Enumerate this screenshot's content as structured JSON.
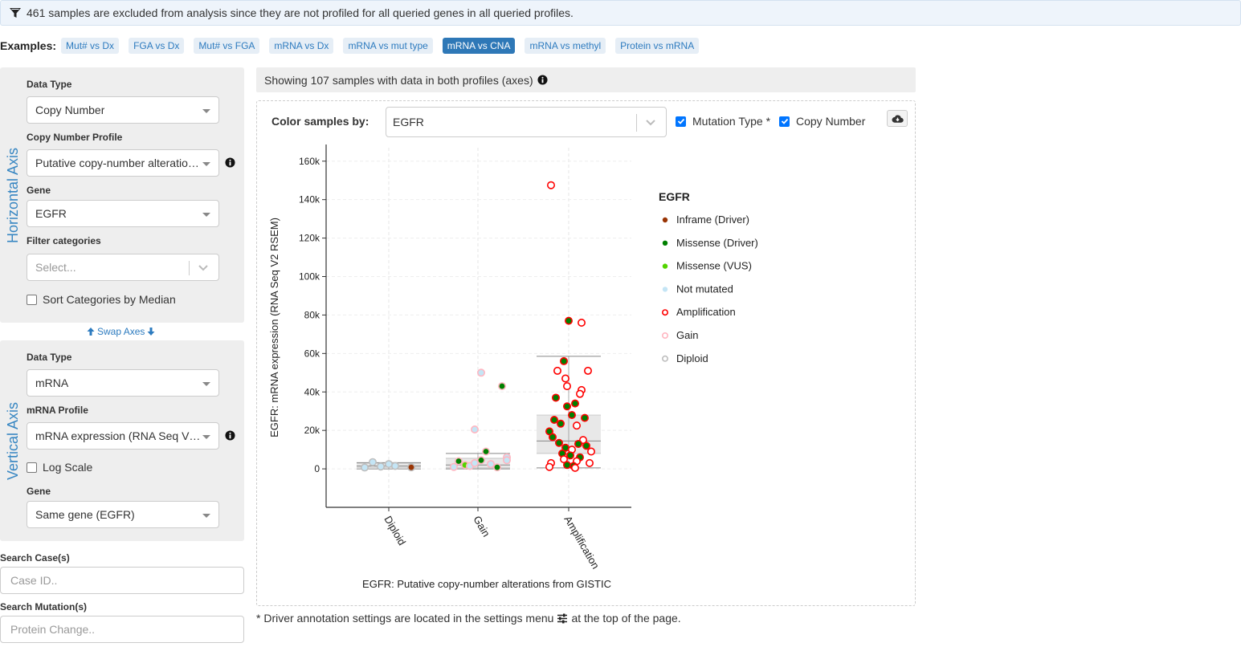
{
  "banner": {
    "text": "461 samples are excluded from analysis since they are not profiled for all queried genes in all queried profiles."
  },
  "examples": {
    "label": "Examples:",
    "items": [
      {
        "label": "Mut# vs Dx",
        "active": false
      },
      {
        "label": "FGA vs Dx",
        "active": false
      },
      {
        "label": "Mut# vs FGA",
        "active": false
      },
      {
        "label": "mRNA vs Dx",
        "active": false
      },
      {
        "label": "mRNA vs mut type",
        "active": false
      },
      {
        "label": "mRNA vs CNA",
        "active": true
      },
      {
        "label": "mRNA vs methyl",
        "active": false
      },
      {
        "label": "Protein vs mRNA",
        "active": false
      }
    ]
  },
  "horizontal": {
    "title": "Horizontal Axis",
    "data_type_label": "Data Type",
    "data_type_value": "Copy Number",
    "profile_label": "Copy Number Profile",
    "profile_value": "Putative copy-number alterations from GISTIC",
    "gene_label": "Gene",
    "gene_value": "EGFR",
    "filter_label": "Filter categories",
    "filter_placeholder": "Select...",
    "sort_label": "Sort Categories by Median"
  },
  "swap_label": "Swap Axes",
  "vertical": {
    "title": "Vertical Axis",
    "data_type_label": "Data Type",
    "data_type_value": "mRNA",
    "profile_label": "mRNA Profile",
    "profile_value": "mRNA expression (RNA Seq V2 RSEM)",
    "log_label": "Log Scale",
    "gene_label": "Gene",
    "gene_value": "Same gene (EGFR)"
  },
  "search": {
    "case_label": "Search Case(s)",
    "case_placeholder": "Case ID..",
    "mutation_label": "Search Mutation(s)",
    "mutation_placeholder": "Protein Change.."
  },
  "showing": "Showing 107 samples with data in both profiles (axes)",
  "color_by": {
    "label": "Color samples by:",
    "value": "EGFR",
    "mutation_type_label": "Mutation Type *",
    "copy_number_label": "Copy Number"
  },
  "footnote": {
    "before": "* Driver annotation settings are located in the settings menu",
    "after": "at the top of the page."
  },
  "colors": {
    "inframe": "#993404",
    "missense_driver": "#008000",
    "missense_vus": "#53d400",
    "not_mutated": "#c4e5f5",
    "amplification": "#ff0000",
    "gain": "#ffb6c1",
    "diploid": "#bebebe"
  },
  "chart_data": {
    "type": "scatter",
    "subtype": "box-and-jitter",
    "xlabel": "EGFR: Putative copy-number alterations from GISTIC",
    "ylabel": "EGFR: mRNA expression (RNA Seq V2 RSEM)",
    "categories": [
      "Diploid",
      "Gain",
      "Amplification"
    ],
    "yticks": [
      0,
      20000,
      40000,
      60000,
      80000,
      100000,
      120000,
      140000,
      160000
    ],
    "ytick_labels": [
      "0",
      "20k",
      "40k",
      "60k",
      "80k",
      "100k",
      "120k",
      "140k",
      "160k"
    ],
    "ylim": [
      -20000,
      167000
    ],
    "legend": {
      "title": "EGFR",
      "position": "right",
      "entries": [
        {
          "label": "Inframe (Driver)",
          "kind": "dot",
          "color": "#993404"
        },
        {
          "label": "Missense (Driver)",
          "kind": "dot",
          "color": "#008000"
        },
        {
          "label": "Missense (VUS)",
          "kind": "dot",
          "color": "#53d400"
        },
        {
          "label": "Not mutated",
          "kind": "dot",
          "color": "#c4e5f5"
        },
        {
          "label": "Amplification",
          "kind": "ring",
          "color": "#ff0000"
        },
        {
          "label": "Gain",
          "kind": "ring",
          "color": "#ffb6c1"
        },
        {
          "label": "Diploid",
          "kind": "ring",
          "color": "#bebebe"
        }
      ]
    },
    "boxes": [
      {
        "category": "Diploid",
        "q1": 800,
        "median": 1500,
        "q3": 3000,
        "whisker_low": 0,
        "whisker_high": 3200
      },
      {
        "category": "Gain",
        "q1": 500,
        "median": 2000,
        "q3": 5500,
        "whisker_low": 0,
        "whisker_high": 8000
      },
      {
        "category": "Amplification",
        "q1": 8000,
        "median": 14500,
        "q3": 28000,
        "whisker_low": 500,
        "whisker_high": 58500
      }
    ],
    "points": [
      {
        "c": 0,
        "j": -0.15,
        "y": 700,
        "fill": "#c4e5f5",
        "stroke": "#bebebe"
      },
      {
        "c": 0,
        "j": -0.1,
        "y": 3500,
        "fill": "#c4e5f5",
        "stroke": "#bebebe"
      },
      {
        "c": 0,
        "j": -0.05,
        "y": 1200,
        "fill": "#c4e5f5",
        "stroke": "#bebebe"
      },
      {
        "c": 0,
        "j": 0.0,
        "y": 2500,
        "fill": "#c4e5f5",
        "stroke": "#bebebe"
      },
      {
        "c": 0,
        "j": 0.04,
        "y": 1500,
        "fill": "#c4e5f5",
        "stroke": "#bebebe"
      },
      {
        "c": 0,
        "j": 0.14,
        "y": 800,
        "fill": "#993404",
        "stroke": "#bebebe"
      },
      {
        "c": 1,
        "j": 0.02,
        "y": 50000,
        "fill": "#c4e5f5",
        "stroke": "#ffb6c1"
      },
      {
        "c": 1,
        "j": 0.15,
        "y": 43000,
        "fill": "#008000",
        "stroke": "#ffb6c1"
      },
      {
        "c": 1,
        "j": -0.02,
        "y": 20500,
        "fill": "#c4e5f5",
        "stroke": "#ffb6c1"
      },
      {
        "c": 1,
        "j": 0.05,
        "y": 9000,
        "fill": "#008000",
        "stroke": "#ffb6c1"
      },
      {
        "c": 1,
        "j": -0.12,
        "y": 4000,
        "fill": "#008000",
        "stroke": "#ffb6c1"
      },
      {
        "c": 1,
        "j": -0.08,
        "y": 2000,
        "fill": "#53d400",
        "stroke": "#ffb6c1"
      },
      {
        "c": 1,
        "j": -0.15,
        "y": 1000,
        "fill": "#c4e5f5",
        "stroke": "#ffb6c1"
      },
      {
        "c": 1,
        "j": 0.02,
        "y": 4500,
        "fill": "#008000",
        "stroke": "#ffb6c1"
      },
      {
        "c": 1,
        "j": 0.12,
        "y": 800,
        "fill": "#008000",
        "stroke": "#ffb6c1"
      },
      {
        "c": 1,
        "j": 0.18,
        "y": 6000,
        "fill": "#c4e5f5",
        "stroke": "#ffb6c1"
      },
      {
        "c": 1,
        "j": -0.05,
        "y": 1500,
        "fill": "#c4e5f5",
        "stroke": "#ffb6c1"
      },
      {
        "c": 1,
        "j": 0.08,
        "y": 2500,
        "fill": "#c4e5f5",
        "stroke": "#ffb6c1"
      },
      {
        "c": 1,
        "j": -0.02,
        "y": 3000,
        "fill": "#c4e5f5",
        "stroke": "#ffb6c1"
      },
      {
        "c": 1,
        "j": 0.18,
        "y": 4500,
        "fill": "#c4e5f5",
        "stroke": "#ffb6c1"
      },
      {
        "c": 2,
        "j": -0.11,
        "y": 147500,
        "fill": "#ffffff",
        "stroke": "#ff0000"
      },
      {
        "c": 2,
        "j": 0.0,
        "y": 77000,
        "fill": "#008000",
        "stroke": "#ff0000"
      },
      {
        "c": 2,
        "j": 0.08,
        "y": 76000,
        "fill": "#ffffff",
        "stroke": "#ff0000"
      },
      {
        "c": 2,
        "j": -0.03,
        "y": 56000,
        "fill": "#008000",
        "stroke": "#ff0000"
      },
      {
        "c": 2,
        "j": 0.12,
        "y": 51000,
        "fill": "#ffffff",
        "stroke": "#ff0000"
      },
      {
        "c": 2,
        "j": -0.07,
        "y": 51000,
        "fill": "#ffffff",
        "stroke": "#ff0000"
      },
      {
        "c": 2,
        "j": -0.02,
        "y": 47000,
        "fill": "#ffffff",
        "stroke": "#ff0000"
      },
      {
        "c": 2,
        "j": -0.01,
        "y": 43000,
        "fill": "#ffffff",
        "stroke": "#ff0000"
      },
      {
        "c": 2,
        "j": 0.08,
        "y": 41000,
        "fill": "#ffffff",
        "stroke": "#ff0000"
      },
      {
        "c": 2,
        "j": 0.07,
        "y": 39000,
        "fill": "#ffffff",
        "stroke": "#ff0000"
      },
      {
        "c": 2,
        "j": -0.08,
        "y": 37000,
        "fill": "#008000",
        "stroke": "#ff0000"
      },
      {
        "c": 2,
        "j": 0.04,
        "y": 34000,
        "fill": "#008000",
        "stroke": "#ff0000"
      },
      {
        "c": 2,
        "j": -0.01,
        "y": 32500,
        "fill": "#008000",
        "stroke": "#ff0000"
      },
      {
        "c": 2,
        "j": 0.02,
        "y": 28000,
        "fill": "#008000",
        "stroke": "#ff0000"
      },
      {
        "c": 2,
        "j": -0.09,
        "y": 25500,
        "fill": "#008000",
        "stroke": "#ff0000"
      },
      {
        "c": 2,
        "j": 0.1,
        "y": 26500,
        "fill": "#008000",
        "stroke": "#ff0000"
      },
      {
        "c": 2,
        "j": -0.05,
        "y": 23500,
        "fill": "#008000",
        "stroke": "#ff0000"
      },
      {
        "c": 2,
        "j": 0.05,
        "y": 22500,
        "fill": "#ffffff",
        "stroke": "#ff0000"
      },
      {
        "c": 2,
        "j": -0.12,
        "y": 19500,
        "fill": "#008000",
        "stroke": "#ff0000"
      },
      {
        "c": 2,
        "j": -0.1,
        "y": 16500,
        "fill": "#008000",
        "stroke": "#ff0000"
      },
      {
        "c": 2,
        "j": 0.09,
        "y": 15000,
        "fill": "#ffffff",
        "stroke": "#ff0000"
      },
      {
        "c": 2,
        "j": -0.06,
        "y": 13500,
        "fill": "#008000",
        "stroke": "#ff0000"
      },
      {
        "c": 2,
        "j": 0.06,
        "y": 13000,
        "fill": "#008000",
        "stroke": "#ff0000"
      },
      {
        "c": 2,
        "j": 0.11,
        "y": 12000,
        "fill": "#008000",
        "stroke": "#ff0000"
      },
      {
        "c": 2,
        "j": -0.02,
        "y": 11000,
        "fill": "#008000",
        "stroke": "#ff0000"
      },
      {
        "c": 2,
        "j": 0.02,
        "y": 10000,
        "fill": "#ffffff",
        "stroke": "#ff0000"
      },
      {
        "c": 2,
        "j": 0.14,
        "y": 9000,
        "fill": "#ffffff",
        "stroke": "#ff0000"
      },
      {
        "c": 2,
        "j": -0.04,
        "y": 8000,
        "fill": "#008000",
        "stroke": "#ff0000"
      },
      {
        "c": 2,
        "j": 0.01,
        "y": 7000,
        "fill": "#008000",
        "stroke": "#ff0000"
      },
      {
        "c": 2,
        "j": 0.07,
        "y": 6000,
        "fill": "#008000",
        "stroke": "#ff0000"
      },
      {
        "c": 2,
        "j": -0.03,
        "y": 5000,
        "fill": "#ffffff",
        "stroke": "#ff0000"
      },
      {
        "c": 2,
        "j": 0.05,
        "y": 4000,
        "fill": "#ffffff",
        "stroke": "#ff0000"
      },
      {
        "c": 2,
        "j": -0.11,
        "y": 3000,
        "fill": "#ffffff",
        "stroke": "#ff0000"
      },
      {
        "c": 2,
        "j": 0.13,
        "y": 3000,
        "fill": "#ffffff",
        "stroke": "#ff0000"
      },
      {
        "c": 2,
        "j": -0.01,
        "y": 2000,
        "fill": "#008000",
        "stroke": "#ff0000"
      },
      {
        "c": 2,
        "j": 0.03,
        "y": 1500,
        "fill": "#008000",
        "stroke": "#ff0000"
      },
      {
        "c": 2,
        "j": -0.12,
        "y": 1000,
        "fill": "#ffffff",
        "stroke": "#ff0000"
      },
      {
        "c": 2,
        "j": 0.04,
        "y": 500,
        "fill": "#ffffff",
        "stroke": "#ff0000"
      }
    ]
  }
}
